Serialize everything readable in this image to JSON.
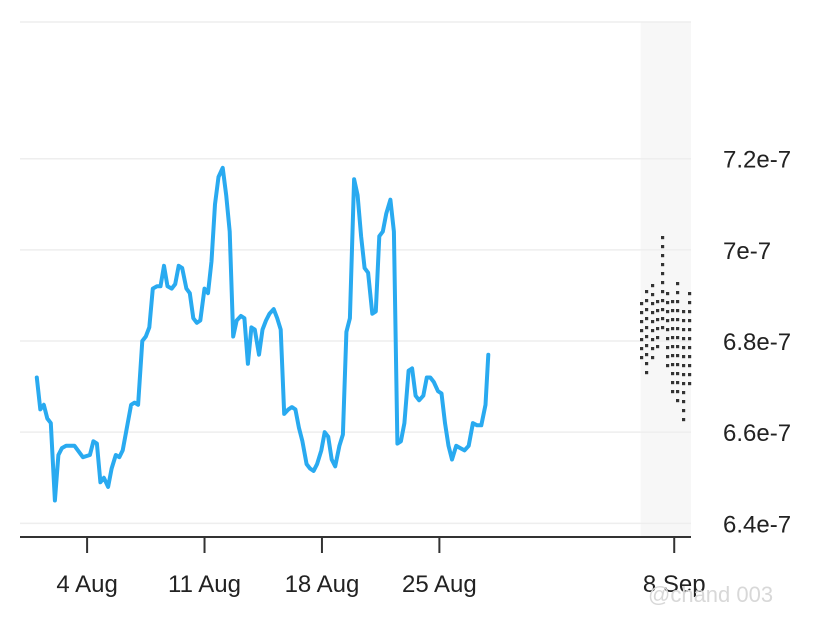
{
  "chart_data": {
    "type": "line",
    "title": "",
    "xlabel": "",
    "ylabel": "",
    "x_start": "2024-07-31",
    "x_end": "2024-09-09",
    "ylim": [
      6.37e-07,
      7.5e-07
    ],
    "y_ticks": [
      {
        "value": 6.4e-07,
        "label": "6.4e-7"
      },
      {
        "value": 6.6e-07,
        "label": "6.6e-7"
      },
      {
        "value": 6.8e-07,
        "label": "6.8e-7"
      },
      {
        "value": 7e-07,
        "label": "7e-7"
      },
      {
        "value": 7.2e-07,
        "label": "7.2e-7"
      }
    ],
    "x_ticks": [
      {
        "date": "2024-08-04",
        "label": "4 Aug"
      },
      {
        "date": "2024-08-11",
        "label": "11 Aug"
      },
      {
        "date": "2024-08-18",
        "label": "18 Aug"
      },
      {
        "date": "2024-08-25",
        "label": "25 Aug"
      },
      {
        "date": "2024-09-08",
        "label": "8 Sep"
      }
    ],
    "grid": true,
    "forecast_region_start": "2024-09-06",
    "colors": {
      "line": "#29aaf0",
      "forecast": "#333333",
      "grid": "#eeeeee",
      "forecast_band": "#f7f7f7"
    },
    "series": [
      {
        "name": "",
        "points": [
          [
            "2024-08-01 00:00",
            6.72e-07
          ],
          [
            "2024-08-01 05:00",
            6.65e-07
          ],
          [
            "2024-08-01 10:00",
            6.66e-07
          ],
          [
            "2024-08-01 15:00",
            6.63e-07
          ],
          [
            "2024-08-01 20:00",
            6.62e-07
          ],
          [
            "2024-08-02 02:00",
            6.45e-07
          ],
          [
            "2024-08-02 07:00",
            6.55e-07
          ],
          [
            "2024-08-02 12:00",
            6.565e-07
          ],
          [
            "2024-08-02 18:00",
            6.57e-07
          ],
          [
            "2024-08-03 06:00",
            6.57e-07
          ],
          [
            "2024-08-03 18:00",
            6.545e-07
          ],
          [
            "2024-08-04 04:00",
            6.55e-07
          ],
          [
            "2024-08-04 09:00",
            6.58e-07
          ],
          [
            "2024-08-04 14:00",
            6.575e-07
          ],
          [
            "2024-08-04 19:00",
            6.49e-07
          ],
          [
            "2024-08-05 00:00",
            6.5e-07
          ],
          [
            "2024-08-05 06:00",
            6.48e-07
          ],
          [
            "2024-08-05 11:00",
            6.52e-07
          ],
          [
            "2024-08-05 17:00",
            6.55e-07
          ],
          [
            "2024-08-05 22:00",
            6.545e-07
          ],
          [
            "2024-08-06 03:00",
            6.56e-07
          ],
          [
            "2024-08-06 15:00",
            6.66e-07
          ],
          [
            "2024-08-06 20:00",
            6.665e-07
          ],
          [
            "2024-08-07 01:00",
            6.66e-07
          ],
          [
            "2024-08-07 07:00",
            6.8e-07
          ],
          [
            "2024-08-07 12:00",
            6.81e-07
          ],
          [
            "2024-08-07 17:00",
            6.83e-07
          ],
          [
            "2024-08-07 22:00",
            6.915e-07
          ],
          [
            "2024-08-08 04:00",
            6.92e-07
          ],
          [
            "2024-08-08 09:00",
            6.92e-07
          ],
          [
            "2024-08-08 14:00",
            6.965e-07
          ],
          [
            "2024-08-08 19:00",
            6.92e-07
          ],
          [
            "2024-08-09 01:00",
            6.915e-07
          ],
          [
            "2024-08-09 06:00",
            6.925e-07
          ],
          [
            "2024-08-09 11:00",
            6.965e-07
          ],
          [
            "2024-08-09 16:00",
            6.96e-07
          ],
          [
            "2024-08-09 22:00",
            6.915e-07
          ],
          [
            "2024-08-10 03:00",
            6.905e-07
          ],
          [
            "2024-08-10 08:00",
            6.85e-07
          ],
          [
            "2024-08-10 13:00",
            6.84e-07
          ],
          [
            "2024-08-10 18:00",
            6.845e-07
          ],
          [
            "2024-08-11 00:00",
            6.915e-07
          ],
          [
            "2024-08-11 05:00",
            6.905e-07
          ],
          [
            "2024-08-11 10:00",
            6.975e-07
          ],
          [
            "2024-08-11 15:00",
            7.1e-07
          ],
          [
            "2024-08-11 20:00",
            7.16e-07
          ],
          [
            "2024-08-12 02:00",
            7.18e-07
          ],
          [
            "2024-08-12 07:00",
            7.12e-07
          ],
          [
            "2024-08-12 12:00",
            7.04e-07
          ],
          [
            "2024-08-12 17:00",
            6.81e-07
          ],
          [
            "2024-08-12 22:00",
            6.845e-07
          ],
          [
            "2024-08-13 04:00",
            6.855e-07
          ],
          [
            "2024-08-13 09:00",
            6.85e-07
          ],
          [
            "2024-08-13 14:00",
            6.75e-07
          ],
          [
            "2024-08-13 19:00",
            6.83e-07
          ],
          [
            "2024-08-14 00:00",
            6.825e-07
          ],
          [
            "2024-08-14 06:00",
            6.77e-07
          ],
          [
            "2024-08-14 11:00",
            6.825e-07
          ],
          [
            "2024-08-14 16:00",
            6.845e-07
          ],
          [
            "2024-08-14 21:00",
            6.86e-07
          ],
          [
            "2024-08-15 03:00",
            6.87e-07
          ],
          [
            "2024-08-15 08:00",
            6.85e-07
          ],
          [
            "2024-08-15 13:00",
            6.825e-07
          ],
          [
            "2024-08-15 18:00",
            6.64e-07
          ],
          [
            "2024-08-16 00:00",
            6.65e-07
          ],
          [
            "2024-08-16 05:00",
            6.655e-07
          ],
          [
            "2024-08-16 10:00",
            6.65e-07
          ],
          [
            "2024-08-16 15:00",
            6.61e-07
          ],
          [
            "2024-08-16 20:00",
            6.58e-07
          ],
          [
            "2024-08-17 02:00",
            6.53e-07
          ],
          [
            "2024-08-17 07:00",
            6.52e-07
          ],
          [
            "2024-08-17 12:00",
            6.515e-07
          ],
          [
            "2024-08-17 17:00",
            6.53e-07
          ],
          [
            "2024-08-17 23:00",
            6.56e-07
          ],
          [
            "2024-08-18 04:00",
            6.6e-07
          ],
          [
            "2024-08-18 09:00",
            6.59e-07
          ],
          [
            "2024-08-18 14:00",
            6.54e-07
          ],
          [
            "2024-08-18 19:00",
            6.525e-07
          ],
          [
            "2024-08-19 01:00",
            6.57e-07
          ],
          [
            "2024-08-19 06:00",
            6.595e-07
          ],
          [
            "2024-08-19 11:00",
            6.82e-07
          ],
          [
            "2024-08-19 16:00",
            6.85e-07
          ],
          [
            "2024-08-19 22:00",
            7.155e-07
          ],
          [
            "2024-08-20 03:00",
            7.12e-07
          ],
          [
            "2024-08-20 08:00",
            7.03e-07
          ],
          [
            "2024-08-20 13:00",
            6.96e-07
          ],
          [
            "2024-08-20 18:00",
            6.95e-07
          ],
          [
            "2024-08-21 00:00",
            6.86e-07
          ],
          [
            "2024-08-21 05:00",
            6.865e-07
          ],
          [
            "2024-08-21 10:00",
            7.03e-07
          ],
          [
            "2024-08-21 15:00",
            7.04e-07
          ],
          [
            "2024-08-21 20:00",
            7.08e-07
          ],
          [
            "2024-08-22 02:00",
            7.11e-07
          ],
          [
            "2024-08-22 07:00",
            7.04e-07
          ],
          [
            "2024-08-22 12:00",
            6.575e-07
          ],
          [
            "2024-08-22 17:00",
            6.58e-07
          ],
          [
            "2024-08-22 22:00",
            6.62e-07
          ],
          [
            "2024-08-23 04:00",
            6.735e-07
          ],
          [
            "2024-08-23 09:00",
            6.74e-07
          ],
          [
            "2024-08-23 14:00",
            6.68e-07
          ],
          [
            "2024-08-23 19:00",
            6.67e-07
          ],
          [
            "2024-08-24 01:00",
            6.68e-07
          ],
          [
            "2024-08-24 06:00",
            6.72e-07
          ],
          [
            "2024-08-24 11:00",
            6.72e-07
          ],
          [
            "2024-08-24 16:00",
            6.71e-07
          ],
          [
            "2024-08-24 22:00",
            6.69e-07
          ],
          [
            "2024-08-25 03:00",
            6.685e-07
          ],
          [
            "2024-08-25 08:00",
            6.62e-07
          ],
          [
            "2024-08-25 13:00",
            6.57e-07
          ],
          [
            "2024-08-25 18:00",
            6.54e-07
          ],
          [
            "2024-08-26 00:00",
            6.57e-07
          ],
          [
            "2024-08-26 06:00",
            6.565e-07
          ],
          [
            "2024-08-26 12:00",
            6.56e-07
          ],
          [
            "2024-08-26 18:00",
            6.57e-07
          ],
          [
            "2024-08-27 00:00",
            6.62e-07
          ],
          [
            "2024-08-27 06:00",
            6.615e-07
          ],
          [
            "2024-08-27 12:00",
            6.615e-07
          ],
          [
            "2024-08-27 18:00",
            6.66e-07
          ],
          [
            "2024-08-27 22:00",
            6.77e-07
          ]
        ]
      }
    ]
  },
  "watermark": "@chand 003"
}
